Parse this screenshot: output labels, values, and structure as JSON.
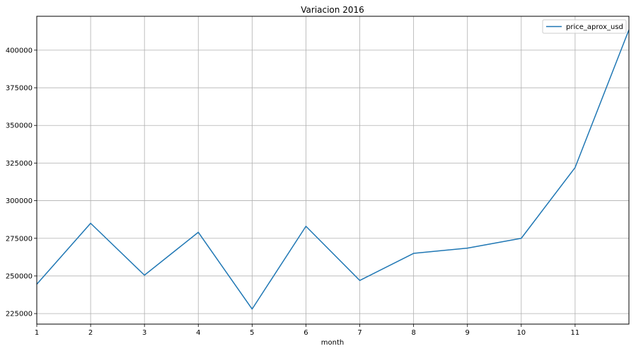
{
  "chart_data": {
    "type": "line",
    "title": "Variacion 2016",
    "xlabel": "month",
    "ylabel": "",
    "x": [
      1,
      2,
      3,
      4,
      5,
      6,
      7,
      8,
      9,
      10,
      11,
      12
    ],
    "x_ticks": [
      1,
      2,
      3,
      4,
      5,
      6,
      7,
      8,
      9,
      10,
      11
    ],
    "xlim": [
      1,
      12
    ],
    "y_ticks": [
      225000,
      250000,
      275000,
      300000,
      325000,
      350000,
      375000,
      400000
    ],
    "ylim": [
      218000,
      422500
    ],
    "grid": true,
    "legend_position": "top-right",
    "series": [
      {
        "name": "price_aprox_usd",
        "color": "#1f77b4",
        "values": [
          244500,
          285000,
          250500,
          279000,
          228000,
          283000,
          247000,
          265000,
          268500,
          275000,
          322000,
          413500
        ]
      }
    ]
  }
}
